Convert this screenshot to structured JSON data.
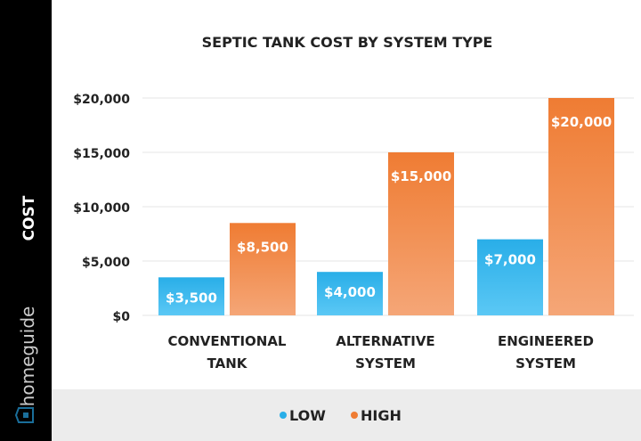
{
  "brand": "homeguide",
  "colors": {
    "low": "#29aee8",
    "low_light": "#5bc8f5",
    "high": "#ef7c33",
    "high_light": "#f5a677",
    "sidebar": "#000000",
    "legend_bg": "#ececec",
    "brand_icon": "#1a6e9a"
  },
  "chart_data": {
    "type": "bar",
    "title": "SEPTIC TANK COST BY SYSTEM TYPE",
    "ylabel": "COST",
    "xlabel": "",
    "ylim": [
      0,
      20000
    ],
    "yticks": [
      0,
      5000,
      10000,
      15000,
      20000
    ],
    "ytick_labels": [
      "$0",
      "$5,000",
      "$10,000",
      "$15,000",
      "$20,000"
    ],
    "grid": true,
    "legend": "bottom",
    "categories": [
      [
        "CONVENTIONAL",
        "TANK"
      ],
      [
        "ALTERNATIVE",
        "SYSTEM"
      ],
      [
        "ENGINEERED",
        "SYSTEM"
      ]
    ],
    "series": [
      {
        "name": "LOW",
        "values": [
          3500,
          4000,
          7000
        ],
        "labels": [
          "$3,500",
          "$4,000",
          "$7,000"
        ]
      },
      {
        "name": "HIGH",
        "values": [
          8500,
          15000,
          20000
        ],
        "labels": [
          "$8,500",
          "$15,000",
          "$20,000"
        ]
      }
    ]
  }
}
